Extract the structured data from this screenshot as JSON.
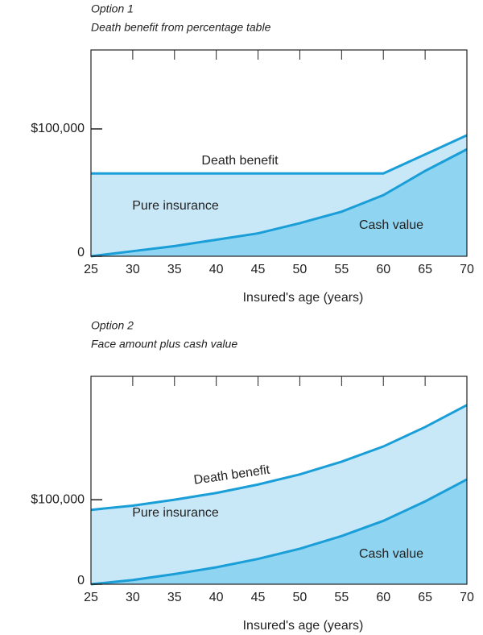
{
  "chart_data": [
    {
      "type": "area",
      "title": "Option 1",
      "subtitle": "Death benefit from percentage table",
      "x": [
        25,
        30,
        35,
        40,
        45,
        50,
        55,
        60,
        65,
        70
      ],
      "xlim": [
        25,
        70
      ],
      "xticks": [
        25,
        30,
        35,
        40,
        45,
        50,
        55,
        60,
        65,
        70
      ],
      "ylim": [
        0,
        162000
      ],
      "yticks": [
        0,
        {
          "value": 100000,
          "label": "$100,000"
        }
      ],
      "xlabel": "Insured's age (years)",
      "line_color": "#1a9ed8",
      "series": [
        {
          "name": "Death benefit",
          "color": "#c8e8f8",
          "values": [
            65000,
            65000,
            65000,
            65000,
            65000,
            65000,
            65000,
            65000,
            80000,
            95000
          ]
        },
        {
          "name": "Cash value",
          "color": "#8fd4f1",
          "values": [
            0,
            4000,
            8000,
            13000,
            18000,
            26000,
            35000,
            48000,
            67000,
            84000
          ]
        }
      ],
      "annotations": [
        "Pure insurance"
      ]
    },
    {
      "type": "area",
      "title": "Option 2",
      "subtitle": "Face amount plus cash value",
      "x": [
        25,
        30,
        35,
        40,
        45,
        50,
        55,
        60,
        65,
        70
      ],
      "xlim": [
        25,
        70
      ],
      "xticks": [
        25,
        30,
        35,
        40,
        45,
        50,
        55,
        60,
        65,
        70
      ],
      "ylim": [
        0,
        246000
      ],
      "yticks": [
        0,
        {
          "value": 100000,
          "label": "$100,000"
        }
      ],
      "xlabel": "Insured's age (years)",
      "line_color": "#1a9ed8",
      "series": [
        {
          "name": "Death benefit",
          "color": "#c8e8f8",
          "values": [
            88000,
            93000,
            100000,
            108000,
            118000,
            130000,
            145000,
            163000,
            186000,
            212000
          ]
        },
        {
          "name": "Cash value",
          "color": "#8fd4f1",
          "values": [
            0,
            5000,
            12000,
            20000,
            30000,
            42000,
            57000,
            75000,
            98000,
            124000
          ]
        }
      ],
      "annotations": [
        "Pure insurance"
      ]
    }
  ]
}
